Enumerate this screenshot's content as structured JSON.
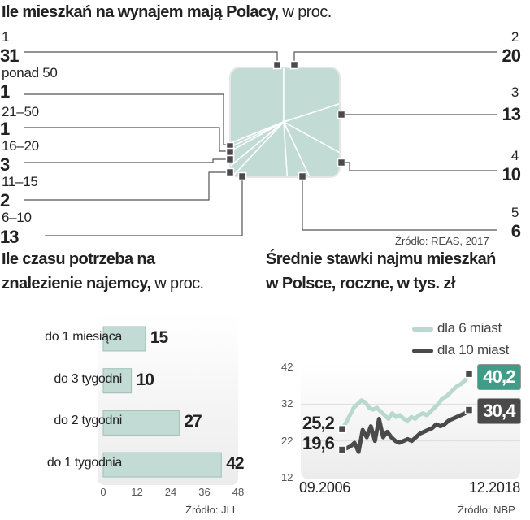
{
  "chart_data": [
    {
      "type": "pie",
      "title": "Ile mieszkań na wynajem mają Polacy,",
      "title_suffix": "w proc.",
      "categories": [
        "1",
        "2",
        "3",
        "4",
        "5",
        "6–10",
        "11–15",
        "16–20",
        "21–50",
        "ponad 50"
      ],
      "values": [
        31,
        20,
        13,
        10,
        6,
        13,
        2,
        3,
        1,
        1
      ],
      "source": "Źródło: REAS, 2017"
    },
    {
      "type": "bar",
      "title_line1": "Ile czasu potrzeba na",
      "title_line2": "znalezienie najemcy,",
      "title_suffix": "w proc.",
      "categories": [
        "do 1 miesiąca",
        "do 3 tygodni",
        "do 2 tygodni",
        "do 1 tygodnia"
      ],
      "values": [
        15,
        10,
        27,
        42
      ],
      "xlim": [
        0,
        48
      ],
      "xticks": [
        "0",
        "12",
        "24",
        "36",
        "48"
      ],
      "source": "Źródło: JLL"
    },
    {
      "type": "line",
      "title_line1": "Średnie stawki najmu mieszkań",
      "title_line2": "w Polsce, roczne, w tys. zł",
      "ylim": [
        12,
        42
      ],
      "yticks": [
        "42",
        "32",
        "22",
        "12"
      ],
      "x_start": "09.2006",
      "x_end": "12.2018",
      "series": [
        {
          "name": "dla 6 miast",
          "color": "#b9d9cf",
          "start_label": "25,2",
          "end_label": "40,2",
          "values": [
            25.2,
            27,
            29,
            31,
            32,
            33,
            32.5,
            31,
            30.5,
            31,
            30,
            29,
            28,
            29.5,
            28.5,
            29,
            28,
            27.5,
            28.5,
            28,
            29,
            29.5,
            29,
            30,
            31,
            32,
            33.5,
            34,
            35,
            36,
            37,
            37.5,
            38.5,
            40.2
          ]
        },
        {
          "name": "dla 10 miast",
          "color": "#4a4a4a",
          "start_label": "19,6",
          "end_label": "30,4",
          "values": [
            19.6,
            20,
            20.5,
            21.5,
            19,
            25,
            23,
            26,
            22,
            28,
            23,
            24.5,
            23,
            22,
            21.5,
            22,
            22.5,
            22,
            23,
            24,
            24.5,
            25,
            25.5,
            26.5,
            26,
            26.5,
            27.5,
            28,
            28.5,
            29,
            29.5,
            30.4
          ]
        }
      ],
      "end_box_colors": [
        "#3f9c87",
        "#4a4a4a"
      ],
      "source": "Źródło: NBP"
    }
  ]
}
